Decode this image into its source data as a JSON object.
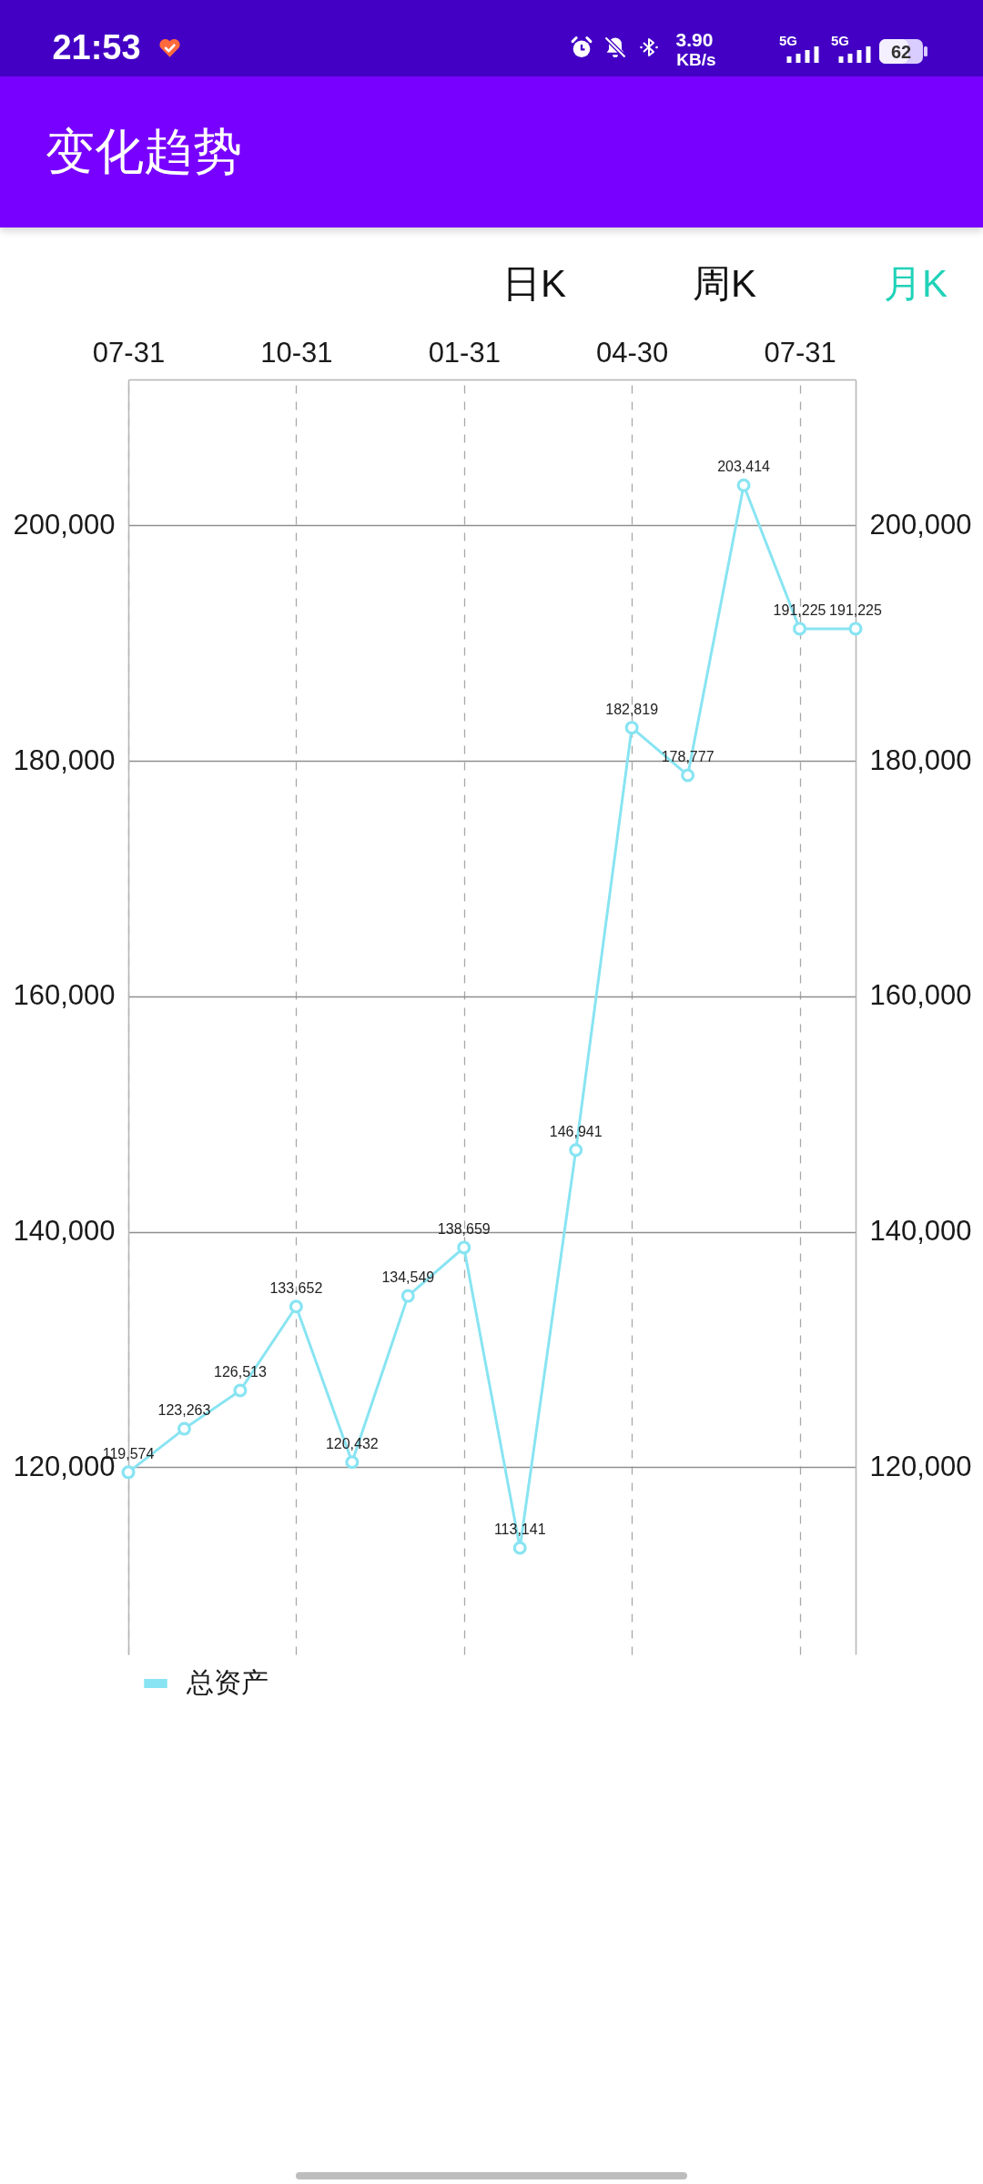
{
  "chart_data": {
    "type": "line",
    "title": "变化趋势",
    "annotations": [
      "21:53",
      "3.90",
      "KB/s",
      "5G",
      "5G",
      "62",
      "日K",
      "周K",
      "月K"
    ],
    "categories": [
      "07-31",
      null,
      null,
      "10-31",
      null,
      null,
      "01-31",
      null,
      null,
      "04-30",
      null,
      null,
      "07-31",
      null
    ],
    "series": [
      {
        "name": "总资产",
        "color": "#88e4f2",
        "values": [
          119574,
          123263,
          126513,
          133652,
          120432,
          134549,
          138659,
          113141,
          146941,
          182819,
          178777,
          203414,
          191225,
          191225
        ],
        "value_labels": [
          "119,574",
          "123,263",
          "126,513",
          "133,652",
          "120,432",
          "134,549",
          "138,659",
          "113,141",
          "146,941",
          "182,819",
          "178,777",
          "203,414",
          "191,225",
          "191,225"
        ]
      }
    ],
    "ylim": [
      104100,
      212400
    ],
    "yticks": [
      {
        "value": 120000,
        "label": "120,000"
      },
      {
        "value": 140000,
        "label": "140,000"
      },
      {
        "value": 160000,
        "label": "160,000"
      },
      {
        "value": 180000,
        "label": "180,000"
      },
      {
        "value": 200000,
        "label": "200,000"
      }
    ],
    "y2lim": [
      104100,
      212400
    ],
    "y2ticks": [
      {
        "value": 120000,
        "label": "120,000"
      },
      {
        "value": 140000,
        "label": "140,000"
      },
      {
        "value": 160000,
        "label": "160,000"
      },
      {
        "value": 180000,
        "label": "180,000"
      },
      {
        "value": 200000,
        "label": "200,000"
      }
    ],
    "grid": true,
    "legend": "bottom left",
    "marker": "circle",
    "line_style": "solid"
  }
}
